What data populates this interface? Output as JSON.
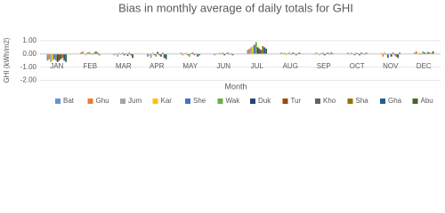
{
  "chart_data": {
    "type": "bar",
    "title": "Bias in monthly average of daily totals for GHI",
    "y_label": "GHI (kWh/m2)",
    "x_label": "Month",
    "categories": [
      "JAN",
      "FEB",
      "MAR",
      "APR",
      "MAY",
      "JUN",
      "JUL",
      "AUG",
      "SEP",
      "OCT",
      "NOV",
      "DEC"
    ],
    "series": [
      {
        "name": "Bat",
        "color": "#5b9bd5",
        "values": [
          -0.5,
          0.1,
          -0.1,
          -0.2,
          0.1,
          -0.1,
          0.3,
          0.1,
          -0.05,
          0.1,
          0.05,
          0.1
        ]
      },
      {
        "name": "Ghu",
        "color": "#ed7d31",
        "values": [
          -0.4,
          0.2,
          0.05,
          -0.1,
          -0.1,
          0.05,
          0.4,
          0.05,
          0.1,
          -0.05,
          -0.2,
          0.2
        ]
      },
      {
        "name": "Jum",
        "color": "#a5a5a5",
        "values": [
          -0.6,
          0.05,
          -0.2,
          -0.3,
          0.05,
          -0.05,
          0.5,
          0.1,
          0.05,
          0.1,
          0.1,
          0.05
        ]
      },
      {
        "name": "Kar",
        "color": "#ffc000",
        "values": [
          -0.5,
          -0.1,
          0.1,
          0.1,
          0.1,
          0.1,
          0.6,
          -0.1,
          -0.1,
          0.05,
          -0.1,
          0.1
        ]
      },
      {
        "name": "She",
        "color": "#4472c4",
        "values": [
          -0.4,
          0.1,
          -0.05,
          -0.1,
          -0.1,
          0.05,
          0.7,
          0.05,
          0.05,
          -0.1,
          -0.3,
          -0.05
        ]
      },
      {
        "name": "Wak",
        "color": "#70ad47",
        "values": [
          -0.5,
          0.15,
          0.1,
          -0.2,
          -0.2,
          0.1,
          0.9,
          0.1,
          0.1,
          0.1,
          0.05,
          0.2
        ]
      },
      {
        "name": "Duk",
        "color": "#264478",
        "values": [
          -0.6,
          0.05,
          -0.1,
          0.15,
          0.05,
          -0.1,
          0.5,
          -0.05,
          -0.1,
          0.05,
          -0.2,
          0.1
        ]
      },
      {
        "name": "Tur",
        "color": "#9e480e",
        "values": [
          -0.5,
          -0.05,
          0.05,
          -0.1,
          0.1,
          0.05,
          0.4,
          0.1,
          0.05,
          -0.1,
          0.1,
          0.05
        ]
      },
      {
        "name": "Kho",
        "color": "#636363",
        "values": [
          -0.4,
          0.1,
          -0.15,
          -0.2,
          -0.1,
          0.1,
          0.3,
          0.05,
          0.1,
          0.1,
          -0.1,
          0.15
        ]
      },
      {
        "name": "Sha",
        "color": "#997300",
        "values": [
          -0.3,
          0.2,
          0.1,
          0.1,
          0.05,
          -0.05,
          0.6,
          -0.1,
          -0.05,
          0.05,
          -0.2,
          0.1
        ]
      },
      {
        "name": "Gha",
        "color": "#255e91",
        "values": [
          -0.5,
          0.1,
          -0.1,
          -0.3,
          -0.2,
          0.05,
          0.5,
          0.05,
          0.1,
          -0.05,
          -0.3,
          0.05
        ]
      },
      {
        "name": "Abu",
        "color": "#43682b",
        "values": [
          -0.6,
          -0.1,
          -0.3,
          -0.4,
          -0.1,
          -0.1,
          0.4,
          0.1,
          0.05,
          0.1,
          0.1,
          0.2
        ]
      }
    ],
    "ylim": [
      -2.3,
      1.4
    ],
    "yticks": [
      {
        "value": 1,
        "label": "1.00"
      },
      {
        "value": 0,
        "label": "0.00"
      },
      {
        "value": -1,
        "label": "-1.00"
      },
      {
        "value": -2,
        "label": "-2.00"
      }
    ],
    "grid": true,
    "legend": "bottom"
  }
}
